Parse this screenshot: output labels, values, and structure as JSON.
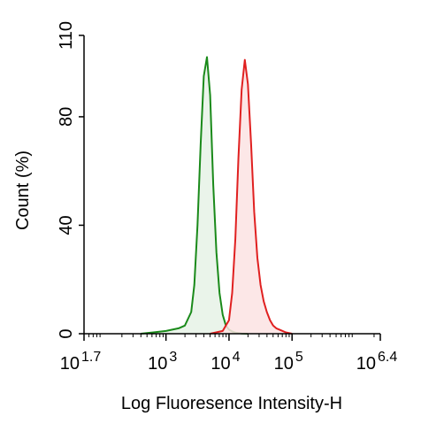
{
  "chart_data": {
    "type": "area",
    "title": "",
    "xlabel": "Log Fluoresence Intensity-H",
    "ylabel": "Count  (%)",
    "x_scale": "log",
    "xlim": [
      1.7,
      6.4
    ],
    "ylim": [
      0,
      110
    ],
    "x_ticks": [
      {
        "exp": 1.7,
        "base": "10",
        "sup": "1.7"
      },
      {
        "exp": 3.0,
        "base": "10",
        "sup": "3"
      },
      {
        "exp": 4.0,
        "base": "10",
        "sup": "4"
      },
      {
        "exp": 5.0,
        "base": "10",
        "sup": "5"
      },
      {
        "exp": 6.4,
        "base": "10",
        "sup": "6.4"
      }
    ],
    "y_ticks": [
      0,
      40,
      80,
      110
    ],
    "grid": false,
    "legend": "none",
    "series": [
      {
        "color": "#1a8a1a",
        "fill": "#e6f2e6",
        "x_log10": [
          2.6,
          2.8,
          3.0,
          3.2,
          3.3,
          3.4,
          3.45,
          3.5,
          3.55,
          3.6,
          3.65,
          3.7,
          3.75,
          3.8,
          3.85,
          3.9,
          3.95,
          4.0,
          4.05,
          4.1,
          4.2,
          4.3
        ],
        "y": [
          0,
          0.5,
          1,
          2,
          3,
          8,
          18,
          40,
          70,
          95,
          102,
          88,
          55,
          30,
          15,
          7,
          3,
          1.5,
          0.8,
          0.4,
          0.1,
          0
        ]
      },
      {
        "color": "#e02020",
        "fill": "#fbe3e3",
        "x_log10": [
          3.7,
          3.9,
          4.0,
          4.05,
          4.1,
          4.15,
          4.2,
          4.25,
          4.3,
          4.35,
          4.4,
          4.45,
          4.5,
          4.55,
          4.6,
          4.65,
          4.7,
          4.75,
          4.8,
          4.85,
          4.9,
          5.0
        ],
        "y": [
          0,
          1,
          5,
          15,
          35,
          65,
          90,
          101,
          92,
          70,
          45,
          28,
          18,
          12,
          8,
          5,
          3,
          2,
          1.5,
          1,
          0.5,
          0
        ]
      }
    ]
  }
}
